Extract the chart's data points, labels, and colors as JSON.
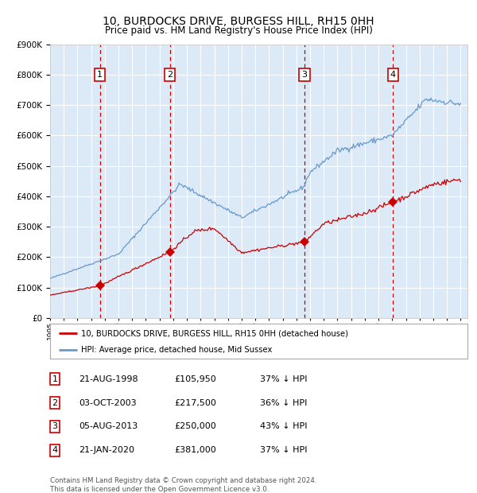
{
  "title": "10, BURDOCKS DRIVE, BURGESS HILL, RH15 0HH",
  "subtitle": "Price paid vs. HM Land Registry's House Price Index (HPI)",
  "legend_label_red": "10, BURDOCKS DRIVE, BURGESS HILL, RH15 0HH (detached house)",
  "legend_label_blue": "HPI: Average price, detached house, Mid Sussex",
  "footer": "Contains HM Land Registry data © Crown copyright and database right 2024.\nThis data is licensed under the Open Government Licence v3.0.",
  "transactions": [
    {
      "num": 1,
      "date": "21-AUG-1998",
      "date_val": 1998.64,
      "price": 105950
    },
    {
      "num": 2,
      "date": "03-OCT-2003",
      "date_val": 2003.75,
      "price": 217500
    },
    {
      "num": 3,
      "date": "05-AUG-2013",
      "date_val": 2013.59,
      "price": 250000
    },
    {
      "num": 4,
      "date": "21-JAN-2020",
      "date_val": 2020.06,
      "price": 381000
    }
  ],
  "table_rows": [
    {
      "num": 1,
      "date": "21-AUG-1998",
      "price": "£105,950",
      "pct": "37% ↓ HPI"
    },
    {
      "num": 2,
      "date": "03-OCT-2003",
      "price": "£217,500",
      "pct": "36% ↓ HPI"
    },
    {
      "num": 3,
      "date": "05-AUG-2013",
      "price": "£250,000",
      "pct": "43% ↓ HPI"
    },
    {
      "num": 4,
      "date": "21-JAN-2020",
      "price": "£381,000",
      "pct": "37% ↓ HPI"
    }
  ],
  "ylim": [
    0,
    900000
  ],
  "yticks": [
    0,
    100000,
    200000,
    300000,
    400000,
    500000,
    600000,
    700000,
    800000,
    900000
  ],
  "ytick_labels": [
    "£0",
    "£100K",
    "£200K",
    "£300K",
    "£400K",
    "£500K",
    "£600K",
    "£700K",
    "£800K",
    "£900K"
  ],
  "xmin": 1995.0,
  "xmax": 2025.5,
  "background_color": "#ffffff",
  "plot_bg_color": "#dce9f7",
  "grid_color": "#ffffff",
  "red_color": "#cc0000",
  "blue_color": "#6699cc",
  "vline_color": "#cc0000",
  "box_color": "#cc0000"
}
